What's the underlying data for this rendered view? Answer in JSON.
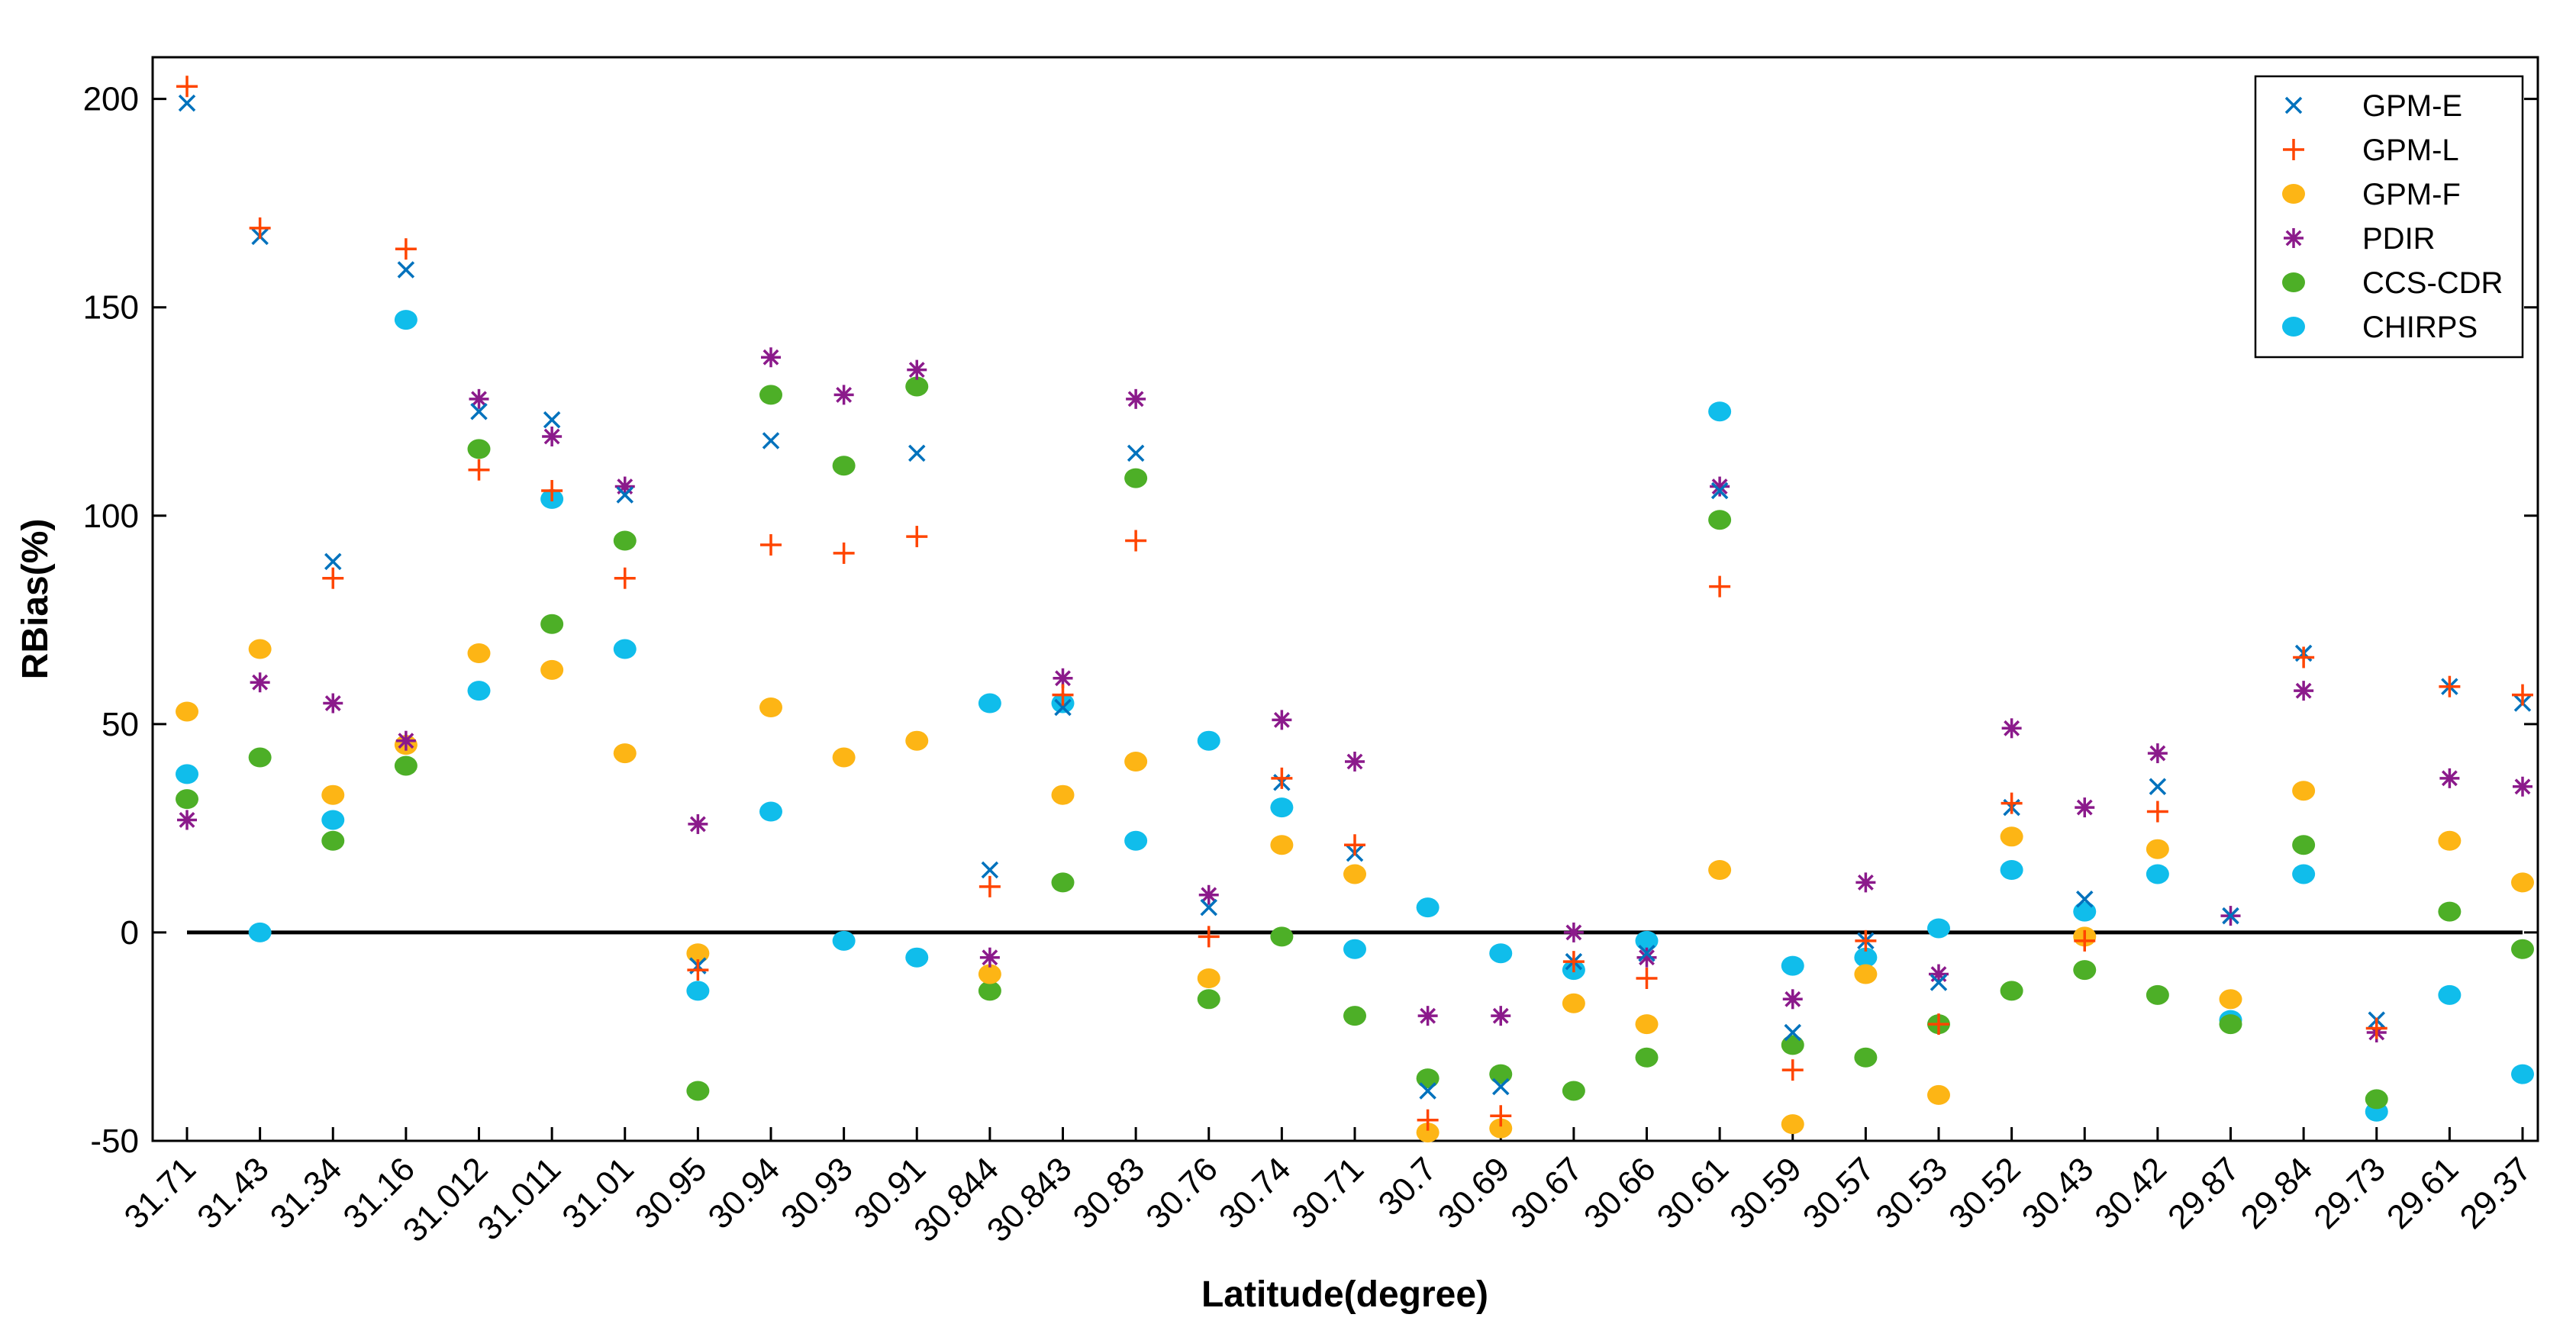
{
  "chart_data": {
    "type": "scatter",
    "title": "",
    "xlabel": "Latitude(degree)",
    "ylabel": "RBias(%)",
    "ylim": [
      -50,
      210
    ],
    "yticks": [
      -50,
      0,
      50,
      100,
      150,
      200
    ],
    "grid": false,
    "legend_position": "top-right",
    "reference_line": 0,
    "categories": [
      "31.71",
      "31.43",
      "31.34",
      "31.16",
      "31.012",
      "31.011",
      "31.01",
      "30.95",
      "30.94",
      "30.93",
      "30.91",
      "30.844",
      "30.843",
      "30.83",
      "30.76",
      "30.74",
      "30.71",
      "30.7",
      "30.69",
      "30.67",
      "30.66",
      "30.61",
      "30.59",
      "30.57",
      "30.53",
      "30.52",
      "30.43",
      "30.42",
      "29.87",
      "29.84",
      "29.73",
      "29.61",
      "29.37"
    ],
    "series": [
      {
        "name": "GPM-E",
        "marker": "x",
        "color": "#0072BD",
        "values": [
          199,
          167,
          89,
          159,
          125,
          123,
          105,
          -8,
          118,
          null,
          115,
          15,
          54,
          115,
          6,
          36,
          19,
          -38,
          -37,
          -7,
          -5,
          106,
          -24,
          -2,
          -12,
          30,
          8,
          35,
          4,
          67,
          -21,
          59,
          55
        ]
      },
      {
        "name": "GPM-L",
        "marker": "plus",
        "color": "#FF4500",
        "values": [
          203,
          169,
          85,
          164,
          111,
          106,
          85,
          -9,
          93,
          91,
          95,
          11,
          57,
          94,
          -1,
          37,
          21,
          -45,
          -44,
          -7,
          -11,
          83,
          -33,
          -2,
          -22,
          31,
          -2,
          29,
          null,
          66,
          -23,
          59,
          57
        ]
      },
      {
        "name": "GPM-F",
        "marker": "dot",
        "color": "#FDB515",
        "values": [
          53,
          68,
          33,
          45,
          67,
          63,
          43,
          -5,
          54,
          42,
          46,
          -10,
          33,
          41,
          -11,
          21,
          14,
          -48,
          -47,
          -17,
          -22,
          15,
          -46,
          -10,
          -39,
          23,
          -1,
          20,
          -16,
          34,
          null,
          22,
          12
        ]
      },
      {
        "name": "PDIR",
        "marker": "asterisk",
        "color": "#8B1A8B",
        "values": [
          27,
          60,
          55,
          46,
          128,
          119,
          107,
          26,
          138,
          129,
          135,
          -6,
          61,
          128,
          9,
          51,
          41,
          -20,
          -20,
          0,
          -6,
          107,
          -16,
          12,
          -10,
          49,
          30,
          43,
          4,
          58,
          -24,
          37,
          35
        ]
      },
      {
        "name": "CCS-CDR",
        "marker": "dot",
        "color": "#4DAF27",
        "values": [
          32,
          42,
          22,
          40,
          116,
          74,
          94,
          -38,
          129,
          112,
          131,
          -14,
          12,
          109,
          -16,
          -1,
          -20,
          -35,
          -34,
          -38,
          -30,
          99,
          -27,
          -30,
          -22,
          -14,
          -9,
          -15,
          -22,
          21,
          -40,
          5,
          -4
        ]
      },
      {
        "name": "CHIRPS",
        "marker": "dot",
        "color": "#10BDEB",
        "values": [
          38,
          0,
          27,
          147,
          58,
          104,
          68,
          -14,
          29,
          -2,
          -6,
          55,
          55,
          22,
          46,
          30,
          -4,
          6,
          -5,
          -9,
          -2,
          125,
          -8,
          -6,
          1,
          15,
          5,
          14,
          -21,
          14,
          -43,
          -15,
          -34
        ]
      }
    ]
  }
}
